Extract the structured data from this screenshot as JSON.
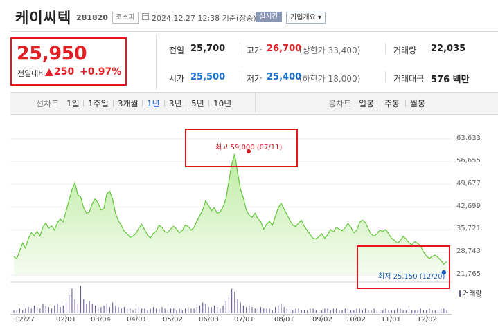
{
  "header": {
    "name": "케이씨텍",
    "code": "281820",
    "market": "코스피",
    "datetime": "2024.12.27 12:38",
    "basis": "기준(장중)",
    "realtime_label": "실시간",
    "company_label": "기업개요 ▾"
  },
  "price": {
    "current": "25,950",
    "change_label": "전일대비",
    "change": "250",
    "change_pct": "+0.97%",
    "direction": "up"
  },
  "info": {
    "prev_close": {
      "label": "전일",
      "value": "25,700"
    },
    "high": {
      "label": "고가",
      "value": "26,700",
      "sub": "(상한가 33,400)"
    },
    "volume": {
      "label": "거래량",
      "value": "22,035"
    },
    "open": {
      "label": "시가",
      "value": "25,500"
    },
    "low": {
      "label": "저가",
      "value": "25,400",
      "sub": "(하한가 18,000)"
    },
    "amount": {
      "label": "거래대금",
      "value": "576 백만"
    }
  },
  "period_bar": {
    "label": "선차트",
    "periods": [
      "1일",
      "1주일",
      "3개월",
      "1년",
      "3년",
      "5년",
      "10년"
    ],
    "active": "1년",
    "candle_label": "봉차트",
    "candles": [
      "일봉",
      "주봉",
      "월봉"
    ]
  },
  "colors": {
    "up": "#e22025",
    "down": "#1a6fcf",
    "line": "#63c93a",
    "volume": "#6b5a9a"
  },
  "chart_data": {
    "type": "area",
    "x_ticks": [
      "12/27",
      "02/01",
      "03/04",
      "04/01",
      "05/02",
      "06/03",
      "07/01",
      "08/01",
      "09/02",
      "10/02",
      "11/01",
      "12/02"
    ],
    "y_ticks": [
      "63,633",
      "56,655",
      "49,677",
      "42,699",
      "35,721",
      "28,743",
      "21,765"
    ],
    "ylim": [
      21765,
      63633
    ],
    "annotations": {
      "high": {
        "label": "최고",
        "value": "59,000",
        "date": "(07/11)"
      },
      "low": {
        "label": "최저",
        "value": "25,150",
        "date": "(12/20)"
      }
    },
    "volume_label": "거래량",
    "values": [
      27500,
      26800,
      29200,
      31600,
      30100,
      33000,
      34800,
      33900,
      35200,
      33800,
      36500,
      37800,
      36200,
      36900,
      35600,
      37900,
      39000,
      38200,
      41500,
      44800,
      48000,
      50200,
      46500,
      45800,
      42500,
      40800,
      41200,
      43800,
      45200,
      44000,
      41800,
      42200,
      46800,
      47600,
      45100,
      40800,
      38400,
      37100,
      35200,
      34500,
      33400,
      33800,
      34600,
      36200,
      37400,
      35800,
      34100,
      33200,
      34600,
      35200,
      37100,
      36400,
      35100,
      34900,
      36000,
      36800,
      35900,
      34800,
      35500,
      37200,
      36800,
      35600,
      36500,
      38400,
      40100,
      41800,
      44600,
      43200,
      41600,
      42500,
      40800,
      41200,
      42700,
      45200,
      50600,
      55800,
      59000,
      53400,
      48200,
      45500,
      41800,
      40200,
      39600,
      40800,
      39100,
      38200,
      35900,
      37400,
      38300,
      37100,
      39800,
      42400,
      43900,
      42100,
      40400,
      38600,
      37200,
      36700,
      37800,
      38600,
      36700,
      35500,
      34200,
      33100,
      32900,
      33600,
      34500,
      33100,
      34200,
      35800,
      35100,
      36400,
      35900,
      35400,
      36300,
      37700,
      36500,
      34800,
      35600,
      38000,
      38700,
      37900,
      36100,
      34300,
      33800,
      34500,
      35600,
      35200,
      35800,
      34500,
      33100,
      32500,
      31600,
      32400,
      33700,
      32900,
      31800,
      31100,
      32100,
      31500,
      30800,
      28900,
      27600,
      26900,
      27500,
      27900,
      27200,
      26300,
      25150,
      25950
    ],
    "volume": [
      2,
      2,
      3,
      2,
      3,
      4,
      3,
      5,
      4,
      3,
      6,
      5,
      4,
      3,
      5,
      6,
      4,
      5,
      7,
      12,
      16,
      9,
      6,
      18,
      9,
      6,
      8,
      6,
      5,
      4,
      4,
      5,
      6,
      4,
      7,
      5,
      4,
      3,
      4,
      3,
      3,
      2,
      3,
      4,
      3,
      3,
      2,
      3,
      4,
      3,
      3,
      4,
      3,
      2,
      3,
      3,
      2,
      3,
      2,
      3,
      4,
      3,
      3,
      4,
      5,
      7,
      6,
      4,
      4,
      5,
      4,
      3,
      5,
      8,
      12,
      16,
      14,
      9,
      7,
      5,
      4,
      5,
      4,
      3,
      3,
      4,
      3,
      3,
      3,
      2,
      4,
      5,
      6,
      4,
      3,
      3,
      2,
      3,
      3,
      2,
      2,
      2,
      3,
      3,
      2,
      2,
      2,
      3,
      3,
      2,
      3,
      3,
      2,
      2,
      3,
      3,
      2,
      2,
      3,
      3,
      2,
      3,
      2,
      2,
      3,
      2,
      2,
      2,
      3,
      2,
      2,
      2,
      3,
      3,
      2,
      2,
      3,
      2,
      2,
      2,
      3,
      2,
      2,
      3,
      2,
      2,
      2,
      3,
      3,
      2
    ]
  }
}
